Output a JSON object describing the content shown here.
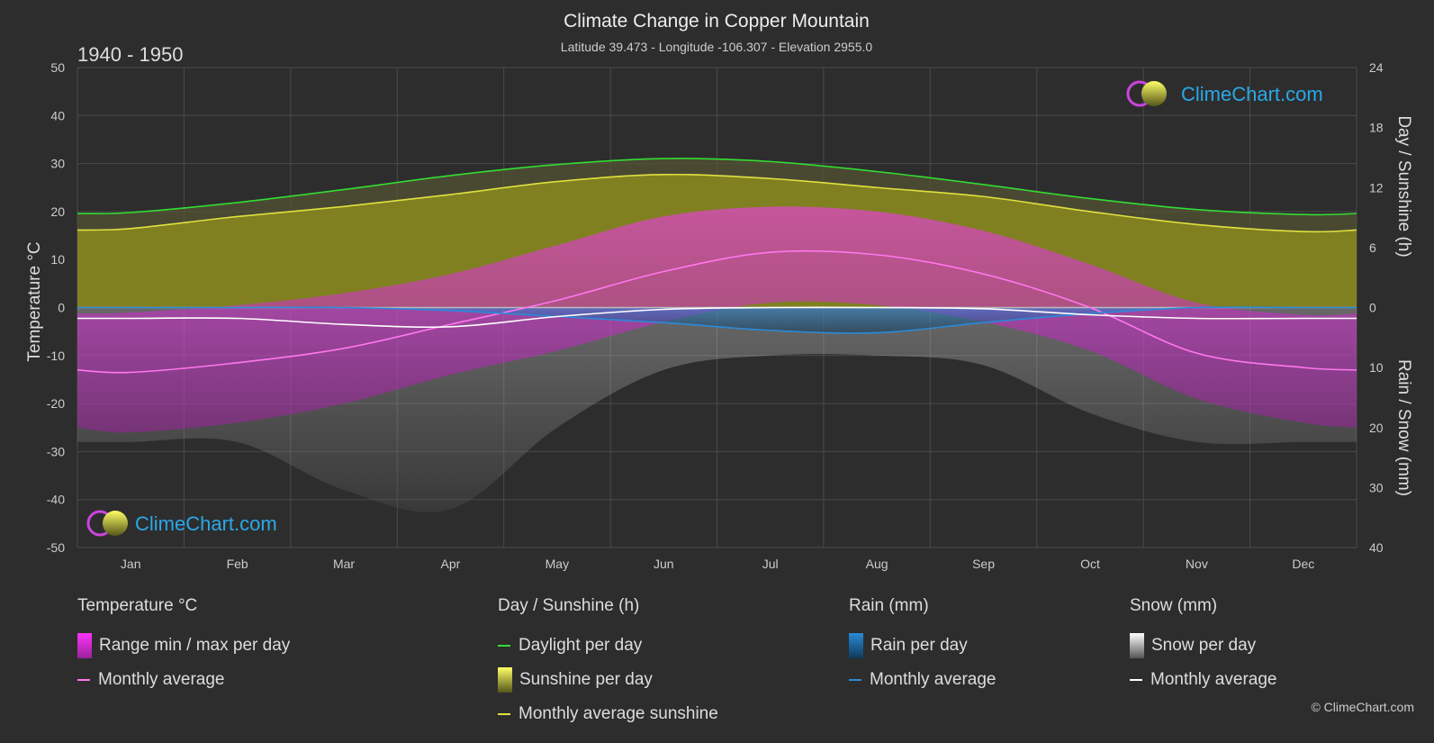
{
  "header": {
    "title": "Climate Change in Copper Mountain",
    "subtitle": "Latitude 39.473 - Longitude -106.307 - Elevation 2955.0",
    "period": "1940 - 1950"
  },
  "brand": {
    "name": "ClimeChart.com",
    "copyright": "© ClimeChart.com"
  },
  "legend": {
    "temperature": {
      "title": "Temperature °C",
      "range": "Range min / max per day",
      "avg": "Monthly average"
    },
    "sunshine": {
      "title": "Day / Sunshine (h)",
      "daylight": "Daylight per day",
      "sunshine": "Sunshine per day",
      "avg": "Monthly average sunshine"
    },
    "rain": {
      "title": "Rain (mm)",
      "per_day": "Rain per day",
      "avg": "Monthly average"
    },
    "snow": {
      "title": "Snow (mm)",
      "per_day": "Snow per day",
      "avg": "Monthly average"
    }
  },
  "colors": {
    "background": "#2d2d2d",
    "daylight": "#33dd33",
    "sunshine": "#e0e040",
    "sunshine_fill": "#8a8a1e",
    "temp_range": "#e040c0",
    "temp_avg": "#ff77ee",
    "rain": "#2a8ad8",
    "snow": "#bbbbbb",
    "snow_avg": "#ffffff",
    "brand_blue": "#2aa8e8"
  },
  "chart_data": {
    "type": "area",
    "categories": [
      "Jan",
      "Feb",
      "Mar",
      "Apr",
      "May",
      "Jun",
      "Jul",
      "Aug",
      "Sep",
      "Oct",
      "Nov",
      "Dec"
    ],
    "y_left": {
      "label": "Temperature °C",
      "range": [
        -50,
        50
      ],
      "ticks": [
        50,
        40,
        30,
        20,
        10,
        0,
        -10,
        -20,
        -30,
        -40,
        -50
      ]
    },
    "y_right_top": {
      "label": "Day / Sunshine (h)",
      "range": [
        0,
        24
      ],
      "ticks": [
        24,
        18,
        12,
        6,
        0
      ]
    },
    "y_right_bottom": {
      "label": "Rain / Snow (mm)",
      "range": [
        0,
        40
      ],
      "ticks": [
        0,
        10,
        20,
        30,
        40
      ]
    },
    "grid": true,
    "series": [
      {
        "name": "Daylight per day",
        "unit": "h",
        "values": [
          9.5,
          10.5,
          11.8,
          13.2,
          14.3,
          14.9,
          14.6,
          13.6,
          12.3,
          10.9,
          9.8,
          9.3
        ]
      },
      {
        "name": "Monthly average sunshine",
        "unit": "h",
        "values": [
          7.9,
          9.1,
          10.1,
          11.3,
          12.6,
          13.3,
          12.9,
          12.0,
          11.1,
          9.6,
          8.3,
          7.6
        ]
      },
      {
        "name": "Temperature monthly average",
        "unit": "°C",
        "values": [
          -13.5,
          -11.5,
          -8.5,
          -3.5,
          1.5,
          7.5,
          11.5,
          11.0,
          7.0,
          0,
          -9.5,
          -12.5
        ]
      },
      {
        "name": "Temperature max per day",
        "unit": "°C",
        "values": [
          -1,
          0.5,
          3,
          7,
          13,
          19,
          21,
          20,
          16,
          9,
          1,
          -1.5
        ]
      },
      {
        "name": "Temperature min per day",
        "unit": "°C",
        "values": [
          -26,
          -24,
          -20,
          -14,
          -9,
          -3,
          1,
          0.5,
          -3,
          -9,
          -19,
          -24
        ]
      },
      {
        "name": "Rain monthly average",
        "unit": "mm",
        "values": [
          0,
          0,
          0,
          0.5,
          1.5,
          2.5,
          3.8,
          4.2,
          2.5,
          1.0,
          0,
          0
        ]
      },
      {
        "name": "Snow monthly average",
        "unit": "mm",
        "values": [
          1.8,
          1.8,
          2.8,
          3.2,
          1.5,
          0.3,
          0,
          0,
          0.2,
          1.2,
          1.8,
          1.8
        ]
      }
    ]
  }
}
